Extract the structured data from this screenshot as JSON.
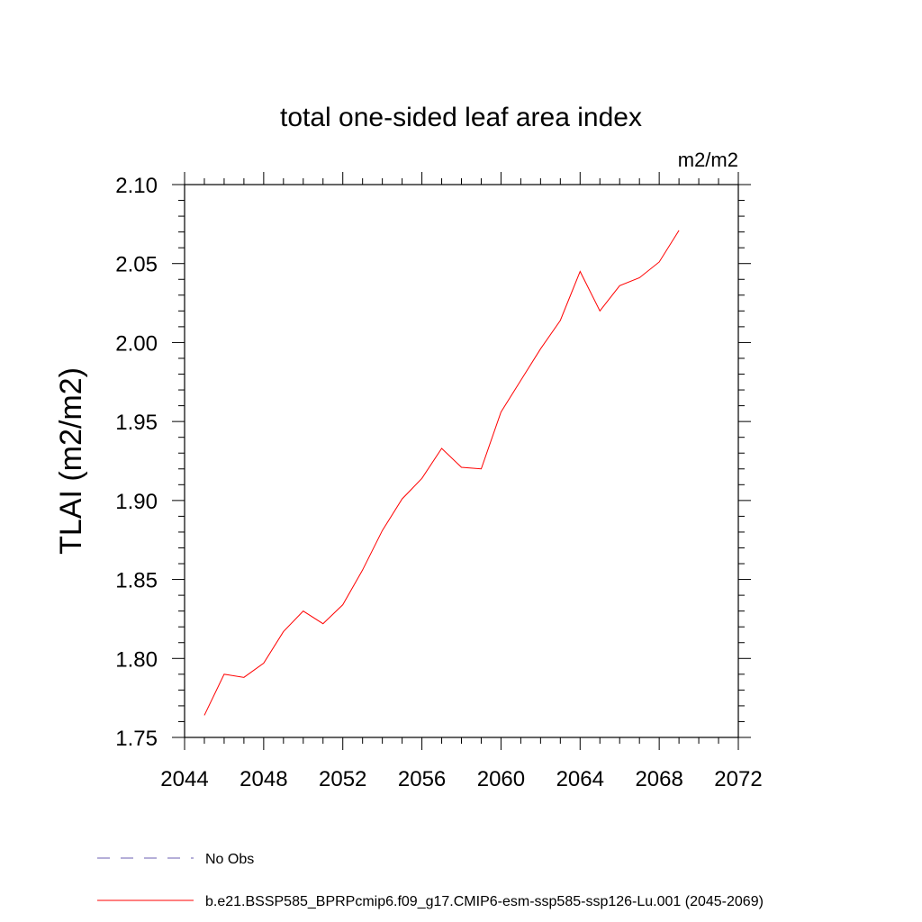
{
  "chart_data": {
    "type": "line",
    "title": "total one-sided leaf area index",
    "units_label": "m2/m2",
    "ylabel": "TLAI  (m2/m2)",
    "xlabel": "",
    "xlim": [
      2044,
      2072
    ],
    "ylim": [
      1.75,
      2.1
    ],
    "x_ticks": [
      2044,
      2048,
      2052,
      2056,
      2060,
      2064,
      2068,
      2072
    ],
    "x_tick_labels": [
      "2044",
      "2048",
      "2052",
      "2056",
      "2060",
      "2064",
      "2068",
      "2072"
    ],
    "x_minor_step": 1,
    "y_ticks": [
      1.75,
      1.8,
      1.85,
      1.9,
      1.95,
      2.0,
      2.05,
      2.1
    ],
    "y_tick_labels": [
      "1.75",
      "1.80",
      "1.85",
      "1.90",
      "1.95",
      "2.00",
      "2.05",
      "2.10"
    ],
    "y_minor_step": 0.01,
    "grid": false,
    "legend_position": "bottom",
    "series": [
      {
        "name": "b.e21.BSSP585_BPRPcmip6.f09_g17.CMIP6-esm-ssp585-ssp126-Lu.001 (2045-2069)",
        "color": "#ff0000",
        "style": "solid",
        "x": [
          2045,
          2046,
          2047,
          2048,
          2049,
          2050,
          2051,
          2052,
          2053,
          2054,
          2055,
          2056,
          2057,
          2058,
          2059,
          2060,
          2061,
          2062,
          2063,
          2064,
          2065,
          2066,
          2067,
          2068,
          2069
        ],
        "y": [
          1.764,
          1.79,
          1.788,
          1.797,
          1.817,
          1.83,
          1.822,
          1.834,
          1.856,
          1.881,
          1.901,
          1.914,
          1.933,
          1.921,
          1.92,
          1.956,
          1.976,
          1.996,
          2.014,
          2.045,
          2.02,
          2.036,
          2.041,
          2.051,
          2.071
        ]
      },
      {
        "name": "No Obs",
        "color": "#6b5fb0",
        "style": "dashed",
        "x": [],
        "y": []
      }
    ]
  }
}
